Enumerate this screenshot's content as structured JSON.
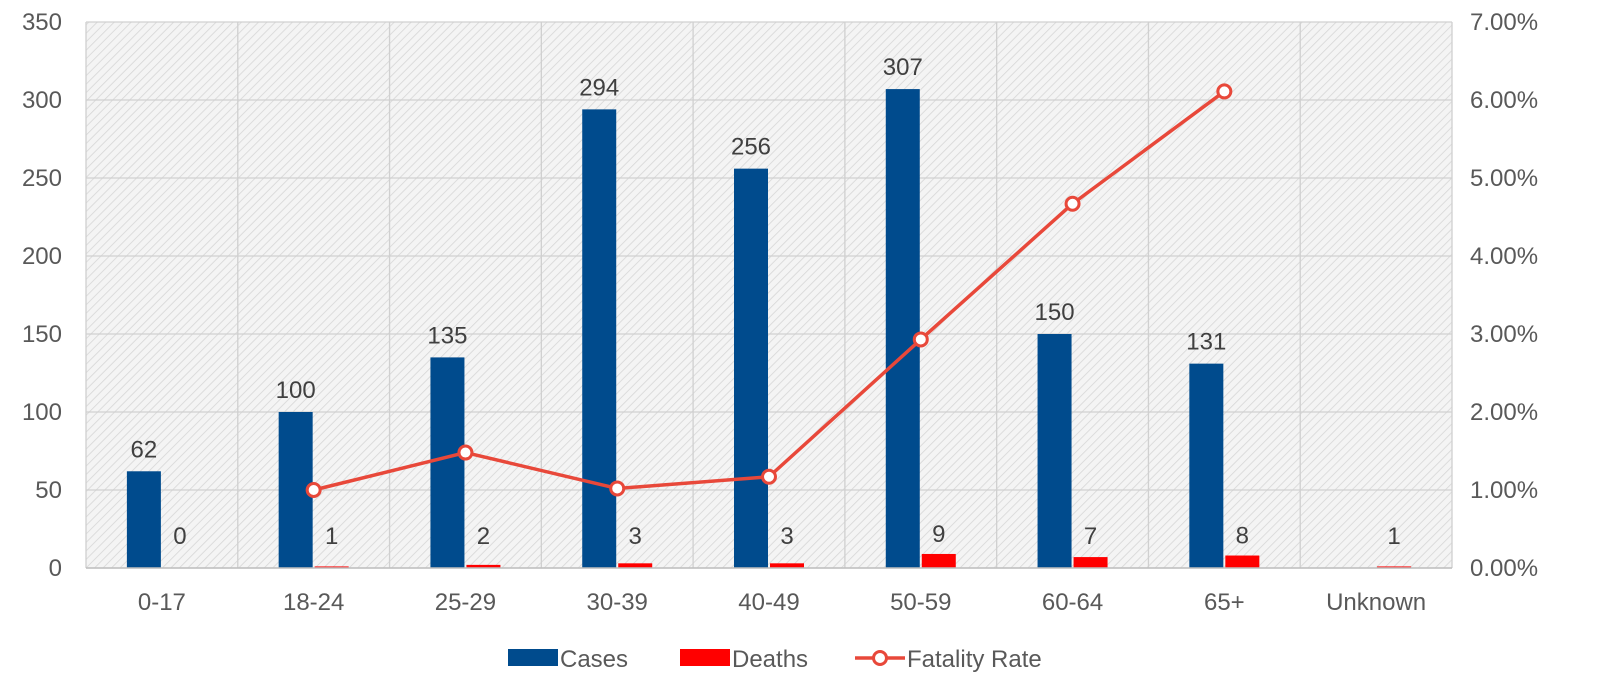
{
  "chart_data": {
    "type": "bar",
    "title": "",
    "xlabel": "",
    "ylabel": "",
    "y2label": "",
    "categories": [
      "0-17",
      "18-24",
      "25-29",
      "30-39",
      "40-49",
      "50-59",
      "60-64",
      "65+",
      "Unknown"
    ],
    "ylim": [
      0,
      350
    ],
    "yticks": [
      0,
      50,
      100,
      150,
      200,
      250,
      300,
      350
    ],
    "y2lim": [
      0,
      0.07
    ],
    "y2ticks": [
      "0.00%",
      "1.00%",
      "2.00%",
      "3.00%",
      "4.00%",
      "5.00%",
      "6.00%",
      "7.00%"
    ],
    "grid": true,
    "legend_position": "bottom",
    "series": [
      {
        "name": "Cases",
        "kind": "bar",
        "color": "#004B8D",
        "values": [
          62,
          100,
          135,
          294,
          256,
          307,
          150,
          131,
          null
        ],
        "labels": [
          "62",
          "100",
          "135",
          "294",
          "256",
          "307",
          "150",
          "131",
          ""
        ]
      },
      {
        "name": "Deaths",
        "kind": "bar",
        "color": "#FF0000",
        "values": [
          0,
          1,
          2,
          3,
          3,
          9,
          7,
          8,
          1
        ],
        "labels": [
          "0",
          "1",
          "2",
          "3",
          "3",
          "9",
          "7",
          "8",
          "1"
        ]
      },
      {
        "name": "Fatality Rate",
        "kind": "line",
        "axis": "secondary",
        "color": "#E8483A",
        "values": [
          null,
          0.01,
          0.0148,
          0.0102,
          0.0117,
          0.0293,
          0.0467,
          0.0611,
          null
        ]
      }
    ]
  }
}
